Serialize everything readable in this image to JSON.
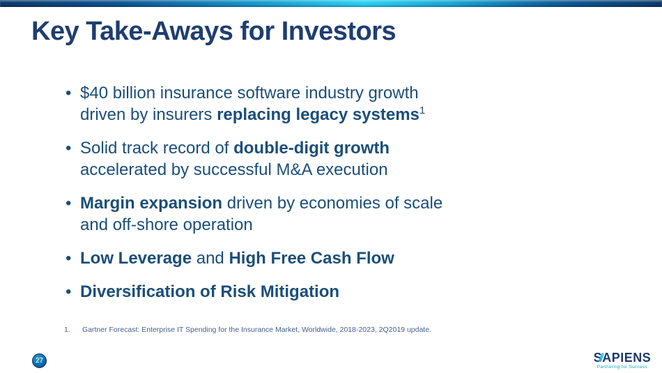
{
  "slide": {
    "title": "Key Take-Aways for Investors",
    "page_number": "27"
  },
  "bullets": [
    {
      "segments": [
        {
          "text": "$40 billion insurance software industry growth",
          "br_after": true
        },
        {
          "text": "driven by insurers "
        },
        {
          "text": "replacing legacy systems",
          "bold": true
        },
        {
          "text": "1",
          "sup": true
        }
      ]
    },
    {
      "segments": [
        {
          "text": "Solid track record of "
        },
        {
          "text": "double-digit growth",
          "bold": true,
          "br_after": true
        },
        {
          "text": "accelerated by successful M&A execution"
        }
      ]
    },
    {
      "segments": [
        {
          "text": "Margin expansion",
          "bold": true
        },
        {
          "text": " driven by economies of scale",
          "br_after": true
        },
        {
          "text": "and off-shore operation"
        }
      ]
    },
    {
      "segments": [
        {
          "text": "Low Leverage",
          "bold": true
        },
        {
          "text": " and "
        },
        {
          "text": "High Free Cash Flow",
          "bold": true
        }
      ]
    },
    {
      "segments": [
        {
          "text": "Diversification of Risk Mitigation",
          "bold": true
        }
      ]
    }
  ],
  "footnote": {
    "number": "1.",
    "text": "Gartner Forecast: Enterprise IT Spending for the Insurance Market, Worldwide, 2018-2023, 2Q2019 update."
  },
  "logo": {
    "name": "SAPIENS",
    "tagline": "Partnering for Success"
  },
  "colors": {
    "title_color": "#1F3E70",
    "body_color": "#1B4E79",
    "bar_dark": "#0B3A69",
    "bar_cyan": "#29D2F2",
    "footnote_color": "#46618C",
    "logo_color": "#1B3A6B",
    "tagline_color": "#0AA6C2"
  }
}
